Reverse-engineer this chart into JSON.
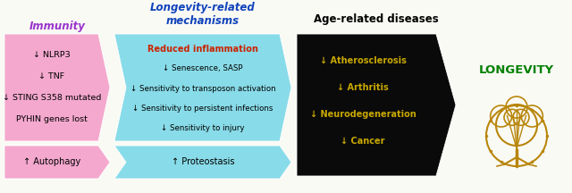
{
  "title_immunity": "Immunity",
  "title_mechanisms": "Longevity-related\nmechanisms",
  "title_diseases": "Age-related diseases",
  "title_longevity": "LONGEVITY",
  "box1_lines": [
    "↓ NLRP3",
    "↓ TNF",
    "↓ STING S358 mutated",
    "PYHIN genes lost"
  ],
  "box2_title": "Reduced inflammation",
  "box2_lines": [
    "↓ Senescence, SASP",
    "↓ Sensitivity to transposon activation",
    "↓ Sensitivity to persistent infections",
    "↓ Sensitivity to injury"
  ],
  "box3_lines": [
    "↓ Atherosclerosis",
    "↓ Arthritis",
    "↓ Neurodegeneration",
    "↓ Cancer"
  ],
  "box4_text": "↑ Autophagy",
  "box5_text": "↑ Proteostasis",
  "color_pink": "#F4A8CE",
  "color_cyan": "#88DBE8",
  "color_black": "#0A0A0A",
  "color_yellow_text": "#C8A800",
  "color_green_longevity": "#008000",
  "color_red_inflammation": "#CC2200",
  "color_purple_immunity": "#9933CC",
  "color_blue_mechanisms": "#1144BB",
  "color_gold_tree": "#B8860B",
  "bg_color": "#FAFAF5"
}
